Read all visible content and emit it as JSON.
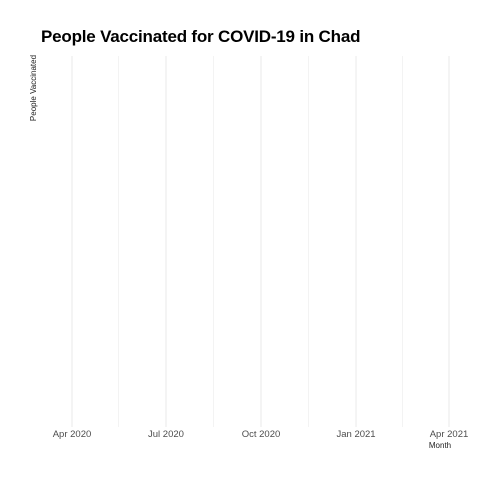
{
  "chart_data": {
    "type": "line",
    "title": "People Vaccinated for COVID-19 in Chad",
    "xlabel": "Month",
    "ylabel": "People Vaccinated",
    "x_axis": {
      "type": "date",
      "range": [
        "2020-03-01",
        "2021-04-01"
      ],
      "ticks": [
        {
          "date": "2020-04-01",
          "label": "Apr 2020"
        },
        {
          "date": "2020-07-01",
          "label": "Jul 2020"
        },
        {
          "date": "2020-10-01",
          "label": "Oct 2020"
        },
        {
          "date": "2021-01-01",
          "label": "Jan 2021"
        },
        {
          "date": "2021-04-01",
          "label": "Apr 2021"
        }
      ],
      "minor_ticks": [
        "2020-05-16",
        "2020-08-16",
        "2020-11-16",
        "2021-02-15"
      ]
    },
    "y_axis": {
      "ticks": []
    },
    "series": [],
    "grid": true,
    "legend": "none",
    "colors": {
      "grid": "#ebebeb",
      "text": "#4d4d4d",
      "title": "#000000"
    }
  }
}
